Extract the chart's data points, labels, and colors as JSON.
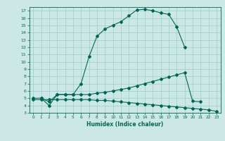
{
  "xlabel": "Humidex (Indice chaleur)",
  "bg_color": "#cce8e4",
  "line_color": "#006655",
  "grid_color": "#99cccc",
  "xlim": [
    -0.5,
    23.5
  ],
  "ylim": [
    3,
    17.5
  ],
  "xticks": [
    0,
    1,
    2,
    3,
    4,
    5,
    6,
    7,
    8,
    9,
    10,
    11,
    12,
    13,
    14,
    15,
    16,
    17,
    18,
    19,
    20,
    21,
    22,
    23
  ],
  "yticks": [
    3,
    4,
    5,
    6,
    7,
    8,
    9,
    10,
    11,
    12,
    13,
    14,
    15,
    16,
    17
  ],
  "line1_x": [
    1,
    2,
    3,
    4,
    5,
    6,
    7,
    8,
    9,
    10,
    11,
    12,
    13,
    14,
    15,
    16,
    17,
    18,
    19
  ],
  "line1_y": [
    5,
    4.5,
    5.5,
    5.5,
    5.5,
    7.0,
    10.7,
    13.5,
    14.5,
    15.0,
    15.5,
    16.3,
    17.1,
    17.2,
    17.0,
    16.7,
    16.5,
    14.8,
    12.0
  ],
  "line2_x": [
    0,
    1,
    2,
    3,
    4,
    5,
    6,
    7,
    8,
    9,
    10,
    11,
    12,
    13,
    14,
    15,
    16,
    17,
    18,
    19,
    20,
    21
  ],
  "line2_y": [
    5,
    5,
    4.0,
    5.5,
    5.5,
    5.5,
    5.5,
    5.5,
    5.7,
    5.8,
    6.0,
    6.2,
    6.4,
    6.7,
    7.0,
    7.3,
    7.6,
    7.9,
    8.2,
    8.5,
    4.6,
    4.5
  ],
  "line3_x": [
    0,
    1,
    2,
    3,
    4,
    5,
    6,
    7,
    8,
    9,
    10,
    11,
    12,
    13,
    14,
    15,
    16,
    17,
    18,
    19,
    20,
    21,
    22,
    23
  ],
  "line3_y": [
    4.8,
    4.8,
    4.8,
    4.8,
    4.8,
    4.8,
    4.8,
    4.8,
    4.7,
    4.7,
    4.6,
    4.5,
    4.4,
    4.3,
    4.2,
    4.1,
    4.0,
    3.9,
    3.8,
    3.7,
    3.6,
    3.5,
    3.4,
    3.2
  ]
}
